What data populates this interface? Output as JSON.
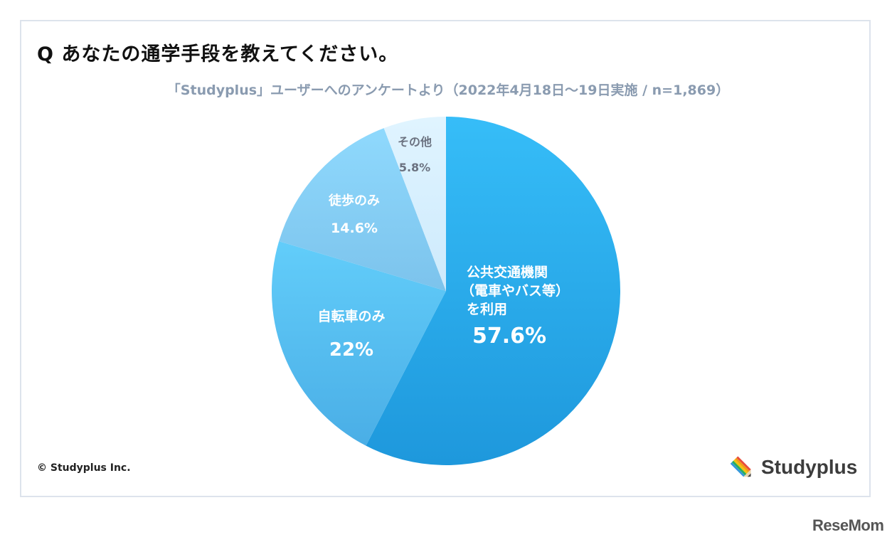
{
  "header": {
    "title": "Q あなたの通学手段を教えてください。",
    "subtitle": "「Studyplus」ユーザーへのアンケートより（2022年4月18日～19日実施 / n=1,869）"
  },
  "chart_data": {
    "type": "pie",
    "title": "Q あなたの通学手段を教えてください。",
    "subtitle": "「Studyplus」ユーザーへのアンケートより（2022年4月18日～19日実施 / n=1,869）",
    "start_angle": "12 o'clock, clockwise",
    "categories": [
      "公共交通機関（電車やバス等）を利用",
      "自転車のみ",
      "徒歩のみ",
      "その他"
    ],
    "values": [
      57.6,
      22,
      14.6,
      5.8
    ],
    "unit": "%",
    "colors": [
      "#2aa8ea",
      "#5ccaf7",
      "#86c9ef",
      "#d6efff"
    ],
    "labels": [
      {
        "lines": [
          "公共交通機関",
          "（電車やバス等）",
          "を利用"
        ],
        "value": "57.6%"
      },
      {
        "lines": [
          "自転車のみ"
        ],
        "value": "22%"
      },
      {
        "lines": [
          "徒歩のみ"
        ],
        "value": "14.6%"
      },
      {
        "lines": [
          "その他"
        ],
        "value": "5.8%"
      }
    ]
  },
  "footer": {
    "copyright": "© Studyplus Inc.",
    "brand": "Studyplus",
    "watermark": "ReseMom"
  }
}
